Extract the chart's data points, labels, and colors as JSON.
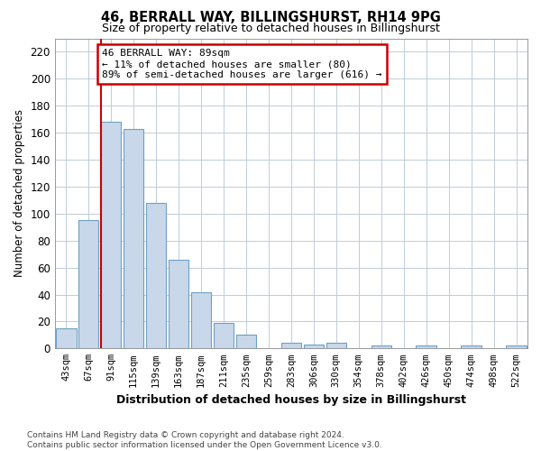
{
  "title": "46, BERRALL WAY, BILLINGSHURST, RH14 9PG",
  "subtitle": "Size of property relative to detached houses in Billingshurst",
  "xlabel": "Distribution of detached houses by size in Billingshurst",
  "ylabel": "Number of detached properties",
  "footer_line1": "Contains HM Land Registry data © Crown copyright and database right 2024.",
  "footer_line2": "Contains public sector information licensed under the Open Government Licence v3.0.",
  "categories": [
    "43sqm",
    "67sqm",
    "91sqm",
    "115sqm",
    "139sqm",
    "163sqm",
    "187sqm",
    "211sqm",
    "235sqm",
    "259sqm",
    "283sqm",
    "306sqm",
    "330sqm",
    "354sqm",
    "378sqm",
    "402sqm",
    "426sqm",
    "450sqm",
    "474sqm",
    "498sqm",
    "522sqm"
  ],
  "values": [
    15,
    95,
    168,
    163,
    108,
    66,
    42,
    19,
    10,
    0,
    4,
    3,
    4,
    0,
    2,
    0,
    2,
    0,
    2,
    0,
    2
  ],
  "bar_color": "#c8d8ea",
  "bar_edgecolor": "#6fa0c4",
  "vline_x_index": 2,
  "vline_color": "#cc0000",
  "annotation_line1": "46 BERRALL WAY: 89sqm",
  "annotation_line2": "← 11% of detached houses are smaller (80)",
  "annotation_line3": "89% of semi-detached houses are larger (616) →",
  "annotation_box_facecolor": "#ffffff",
  "annotation_box_edgecolor": "#cc0000",
  "ylim": [
    0,
    230
  ],
  "yticks": [
    0,
    20,
    40,
    60,
    80,
    100,
    120,
    140,
    160,
    180,
    200,
    220
  ],
  "background_color": "#ffffff",
  "plot_background": "#ffffff",
  "grid_color": "#c0ccd8"
}
